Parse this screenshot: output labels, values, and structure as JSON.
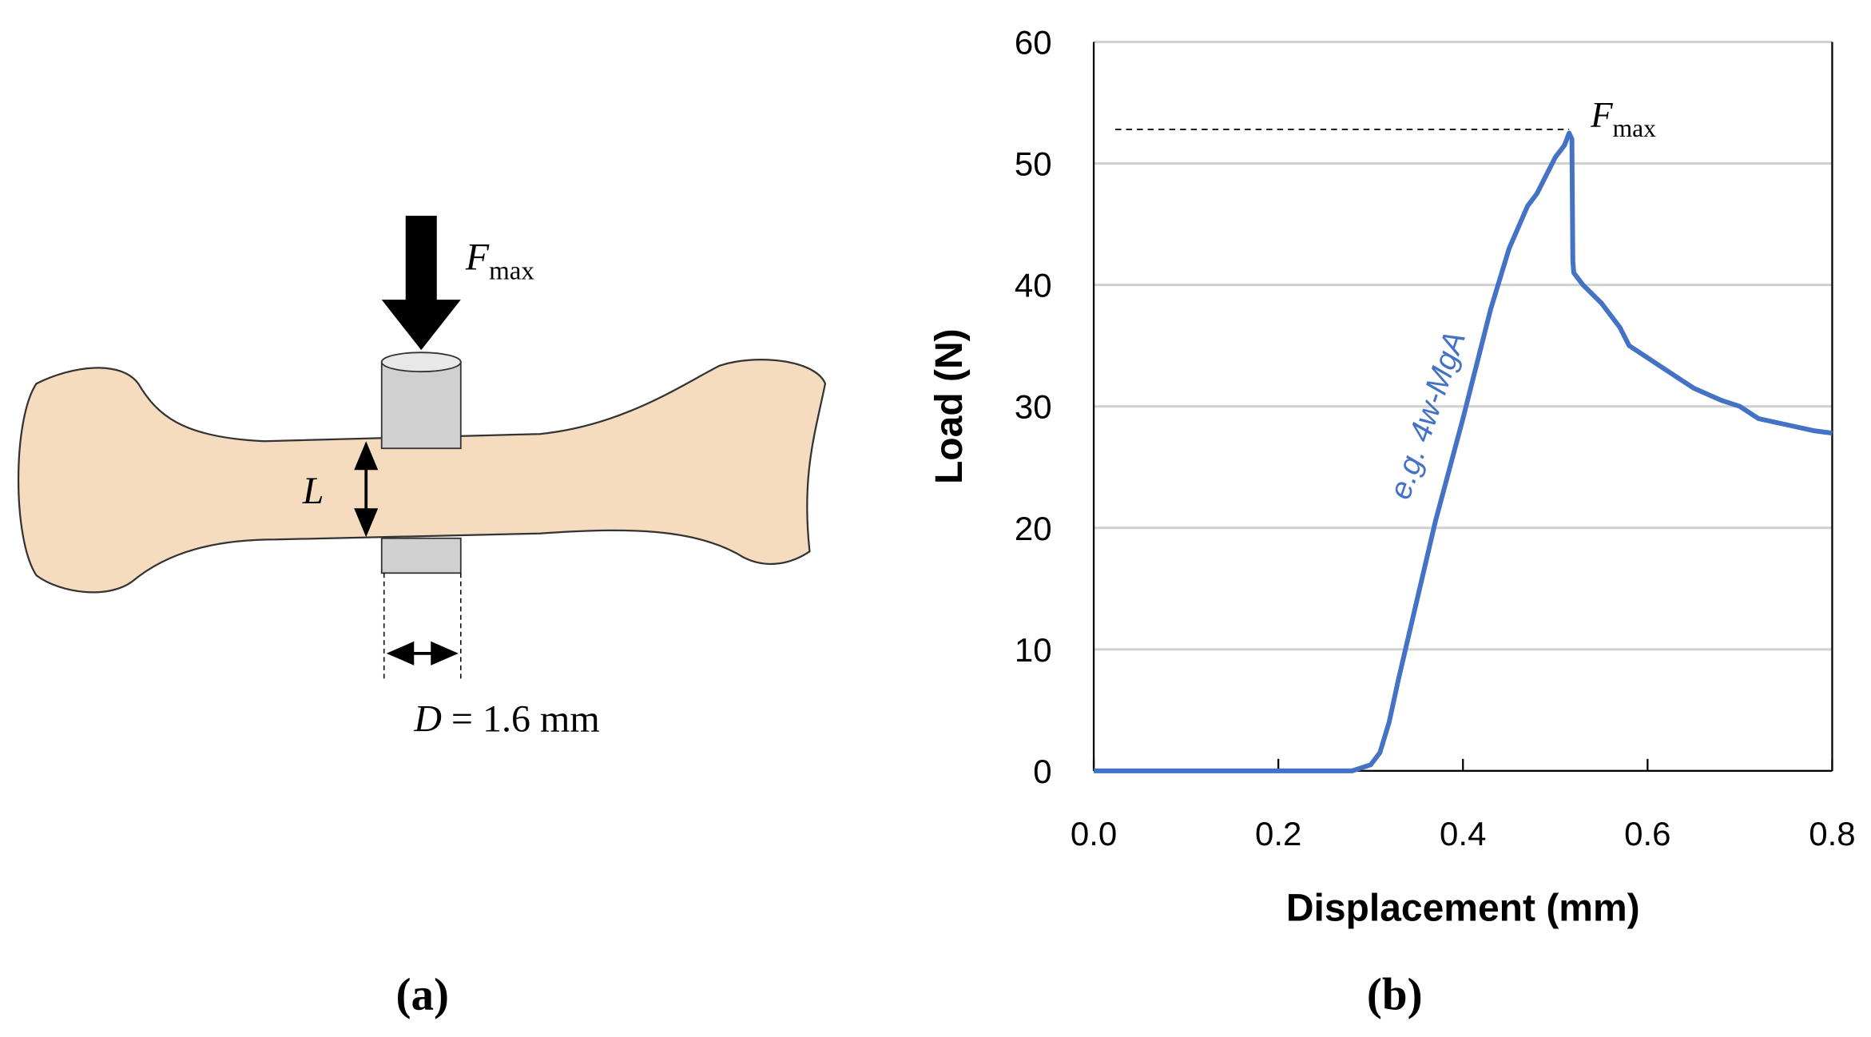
{
  "panel_a": {
    "force": {
      "symbol": "F",
      "subscript": "max"
    },
    "length": "L",
    "diameter": {
      "symbol": "D",
      "text": "= 1.6 mm"
    },
    "caption": "(a)"
  },
  "chart_data": {
    "type": "line",
    "caption": "(b)",
    "x_label": "Displacement (mm)",
    "y_label": "Load (N)",
    "x": [
      0,
      0.28,
      0.3,
      0.31,
      0.32,
      0.33,
      0.35,
      0.37,
      0.4,
      0.43,
      0.45,
      0.47,
      0.48,
      0.49,
      0.5,
      0.51,
      0.515,
      0.518,
      0.519,
      0.52,
      0.53,
      0.55,
      0.57,
      0.58,
      0.6,
      0.62,
      0.65,
      0.68,
      0.7,
      0.72,
      0.75,
      0.78,
      0.8
    ],
    "series": [
      {
        "name": "e.g. 4w-MgA",
        "color": "#4472c4",
        "values": [
          0,
          0,
          0.5,
          1.5,
          4,
          7.5,
          14,
          20.5,
          29,
          38,
          43,
          46.5,
          47.5,
          49,
          50.5,
          51.5,
          52.5,
          52,
          42,
          41,
          40,
          38.5,
          36.5,
          35,
          34,
          33,
          31.5,
          30.5,
          30,
          29,
          28.5,
          28,
          27.8
        ]
      }
    ],
    "reference_line": {
      "value": 52.8,
      "symbol": "F",
      "subscript": "max"
    },
    "xlim": [
      0,
      0.8
    ],
    "xticks": [
      {
        "value": 0,
        "label": "0.0"
      },
      0.2,
      0.4,
      0.6,
      0.8
    ],
    "ylim": [
      0,
      60
    ],
    "yticks": [
      0,
      10,
      20,
      30,
      40,
      50,
      60
    ],
    "grid": true
  }
}
